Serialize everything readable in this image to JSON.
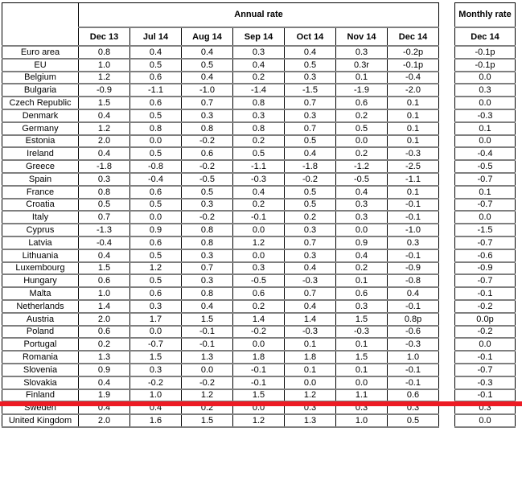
{
  "header": {
    "annual_rate_label": "Annual rate",
    "monthly_rate_label": "Monthly rate",
    "annual_columns": [
      "Dec 13",
      "Jul 14",
      "Aug 14",
      "Sep 14",
      "Oct 14",
      "Nov 14",
      "Dec 14"
    ],
    "monthly_column": "Dec 14"
  },
  "colors": {
    "highlight_line": "#ED1B24",
    "row_border": "#7f7f7f",
    "grid_border": "#000000"
  },
  "rows": [
    {
      "country": "Euro area",
      "bold": true,
      "annual": [
        "0.8",
        "0.4",
        "0.4",
        "0.3",
        "0.4",
        "0.3",
        "-0.2p"
      ],
      "monthly": "-0.1p",
      "monthly_bold": true
    },
    {
      "country": "EU",
      "bold": true,
      "annual": [
        "1.0",
        "0.5",
        "0.5",
        "0.4",
        "0.5",
        "0.3r",
        "-0.1p"
      ],
      "monthly": "-0.1p",
      "monthly_bold": true
    },
    {
      "country": "Belgium",
      "bold": false,
      "annual": [
        "1.2",
        "0.6",
        "0.4",
        "0.2",
        "0.3",
        "0.1",
        "-0.4"
      ],
      "monthly": "0.0",
      "monthly_bold": false
    },
    {
      "country": "Bulgaria",
      "bold": false,
      "annual": [
        "-0.9",
        "-1.1",
        "-1.0",
        "-1.4",
        "-1.5",
        "-1.9",
        "-2.0"
      ],
      "monthly": "0.3",
      "monthly_bold": false
    },
    {
      "country": "Czech Republic",
      "bold": false,
      "annual": [
        "1.5",
        "0.6",
        "0.7",
        "0.8",
        "0.7",
        "0.6",
        "0.1"
      ],
      "monthly": "0.0",
      "monthly_bold": false
    },
    {
      "country": "Denmark",
      "bold": false,
      "annual": [
        "0.4",
        "0.5",
        "0.3",
        "0.3",
        "0.3",
        "0.2",
        "0.1"
      ],
      "monthly": "-0.3",
      "monthly_bold": false
    },
    {
      "country": "Germany",
      "bold": false,
      "annual": [
        "1.2",
        "0.8",
        "0.8",
        "0.8",
        "0.7",
        "0.5",
        "0.1"
      ],
      "monthly": "0.1",
      "monthly_bold": false
    },
    {
      "country": "Estonia",
      "bold": false,
      "annual": [
        "2.0",
        "0.0",
        "-0.2",
        "0.2",
        "0.5",
        "0.0",
        "0.1"
      ],
      "monthly": "0.0",
      "monthly_bold": false
    },
    {
      "country": "Ireland",
      "bold": false,
      "annual": [
        "0.4",
        "0.5",
        "0.6",
        "0.5",
        "0.4",
        "0.2",
        "-0.3"
      ],
      "monthly": "-0.4",
      "monthly_bold": false
    },
    {
      "country": "Greece",
      "bold": false,
      "annual": [
        "-1.8",
        "-0.8",
        "-0.2",
        "-1.1",
        "-1.8",
        "-1.2",
        "-2.5"
      ],
      "monthly": "-0.5",
      "monthly_bold": false
    },
    {
      "country": "Spain",
      "bold": false,
      "annual": [
        "0.3",
        "-0.4",
        "-0.5",
        "-0.3",
        "-0.2",
        "-0.5",
        "-1.1"
      ],
      "monthly": "-0.7",
      "monthly_bold": false
    },
    {
      "country": "France",
      "bold": false,
      "annual": [
        "0.8",
        "0.6",
        "0.5",
        "0.4",
        "0.5",
        "0.4",
        "0.1"
      ],
      "monthly": "0.1",
      "monthly_bold": false
    },
    {
      "country": "Croatia",
      "bold": false,
      "annual": [
        "0.5",
        "0.5",
        "0.3",
        "0.2",
        "0.5",
        "0.3",
        "-0.1"
      ],
      "monthly": "-0.7",
      "monthly_bold": false
    },
    {
      "country": "Italy",
      "bold": false,
      "annual": [
        "0.7",
        "0.0",
        "-0.2",
        "-0.1",
        "0.2",
        "0.3",
        "-0.1"
      ],
      "monthly": "0.0",
      "monthly_bold": false
    },
    {
      "country": "Cyprus",
      "bold": false,
      "annual": [
        "-1.3",
        "0.9",
        "0.8",
        "0.0",
        "0.3",
        "0.0",
        "-1.0"
      ],
      "monthly": "-1.5",
      "monthly_bold": false
    },
    {
      "country": "Latvia",
      "bold": false,
      "annual": [
        "-0.4",
        "0.6",
        "0.8",
        "1.2",
        "0.7",
        "0.9",
        "0.3"
      ],
      "monthly": "-0.7",
      "monthly_bold": false
    },
    {
      "country": "Lithuania",
      "bold": false,
      "annual": [
        "0.4",
        "0.5",
        "0.3",
        "0.0",
        "0.3",
        "0.4",
        "-0.1"
      ],
      "monthly": "-0.6",
      "monthly_bold": false
    },
    {
      "country": "Luxembourg",
      "bold": false,
      "annual": [
        "1.5",
        "1.2",
        "0.7",
        "0.3",
        "0.4",
        "0.2",
        "-0.9"
      ],
      "monthly": "-0.9",
      "monthly_bold": false
    },
    {
      "country": "Hungary",
      "bold": false,
      "annual": [
        "0.6",
        "0.5",
        "0.3",
        "-0.5",
        "-0.3",
        "0.1",
        "-0.8"
      ],
      "monthly": "-0.7",
      "monthly_bold": false
    },
    {
      "country": "Malta",
      "bold": false,
      "annual": [
        "1.0",
        "0.6",
        "0.8",
        "0.6",
        "0.7",
        "0.6",
        "0.4"
      ],
      "monthly": "-0.1",
      "monthly_bold": false
    },
    {
      "country": "Netherlands",
      "bold": false,
      "annual": [
        "1.4",
        "0.3",
        "0.4",
        "0.2",
        "0.4",
        "0.3",
        "-0.1"
      ],
      "monthly": "-0.2",
      "monthly_bold": false
    },
    {
      "country": "Austria",
      "bold": false,
      "annual": [
        "2.0",
        "1.7",
        "1.5",
        "1.4",
        "1.4",
        "1.5",
        "0.8p"
      ],
      "monthly": "0.0p",
      "monthly_bold": false
    },
    {
      "country": "Poland",
      "bold": false,
      "annual": [
        "0.6",
        "0.0",
        "-0.1",
        "-0.2",
        "-0.3",
        "-0.3",
        "-0.6"
      ],
      "monthly": "-0.2",
      "monthly_bold": false
    },
    {
      "country": "Portugal",
      "bold": false,
      "annual": [
        "0.2",
        "-0.7",
        "-0.1",
        "0.0",
        "0.1",
        "0.1",
        "-0.3"
      ],
      "monthly": "0.0",
      "monthly_bold": false
    },
    {
      "country": "Romania",
      "bold": false,
      "annual": [
        "1.3",
        "1.5",
        "1.3",
        "1.8",
        "1.8",
        "1.5",
        "1.0"
      ],
      "monthly": "-0.1",
      "monthly_bold": false,
      "highlighted": true
    },
    {
      "country": "Slovenia",
      "bold": false,
      "annual": [
        "0.9",
        "0.3",
        "0.0",
        "-0.1",
        "0.1",
        "0.1",
        "-0.1"
      ],
      "monthly": "-0.7",
      "monthly_bold": false
    },
    {
      "country": "Slovakia",
      "bold": false,
      "annual": [
        "0.4",
        "-0.2",
        "-0.2",
        "-0.1",
        "0.0",
        "0.0",
        "-0.1"
      ],
      "monthly": "-0.3",
      "monthly_bold": false
    },
    {
      "country": "Finland",
      "bold": false,
      "annual": [
        "1.9",
        "1.0",
        "1.2",
        "1.5",
        "1.2",
        "1.1",
        "0.6"
      ],
      "monthly": "-0.1",
      "monthly_bold": false
    },
    {
      "country": "Sweden",
      "bold": false,
      "annual": [
        "0.4",
        "0.4",
        "0.2",
        "0.0",
        "0.3",
        "0.3",
        "0.3"
      ],
      "monthly": "0.3",
      "monthly_bold": false
    },
    {
      "country": "United Kingdom",
      "bold": false,
      "annual": [
        "2.0",
        "1.6",
        "1.5",
        "1.2",
        "1.3",
        "1.0",
        "0.5"
      ],
      "monthly": "0.0",
      "monthly_bold": false
    }
  ]
}
